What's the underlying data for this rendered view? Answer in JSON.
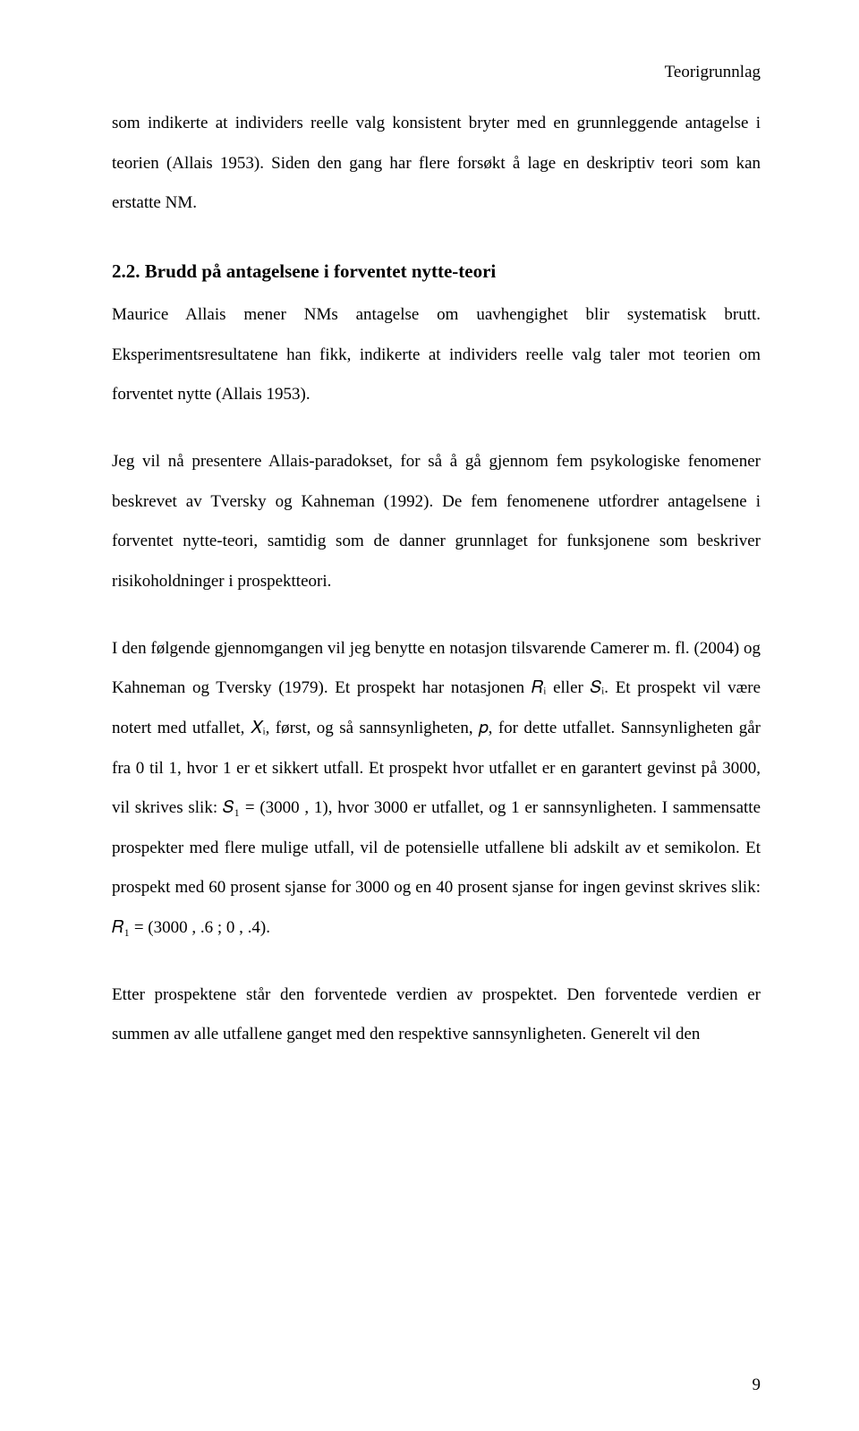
{
  "header": {
    "running_title": "Teorigrunnlag"
  },
  "body": {
    "p1": "som indikerte at individers reelle valg konsistent bryter med en grunnleggende antagelse i teorien (Allais 1953). Siden den gang har flere forsøkt å lage en deskriptiv teori som kan erstatte NM.",
    "h1": "2.2. Brudd på antagelsene i forventet nytte-teori",
    "p2": "Maurice Allais mener NMs antagelse om uavhengighet blir systematisk brutt. Eksperimentsresultatene han fikk, indikerte at individers reelle valg taler mot teorien om forventet nytte (Allais 1953).",
    "p3": "Jeg vil nå presentere Allais-paradokset, for så å gå gjennom fem psykologiske fenomener beskrevet av Tversky og Kahneman (1992). De fem fenomenene utfordrer antagelsene i forventet nytte-teori, samtidig som de danner grunnlaget for funksjonene som beskriver risikoholdninger i prospektteori.",
    "p4": "I den følgende gjennomgangen vil jeg benytte en notasjon tilsvarende Camerer m. fl. (2004) og Kahneman og Tversky (1979). Et prospekt har notasjonen 𝑅ᵢ eller 𝑆ᵢ. Et prospekt vil være notert med utfallet, 𝑋ᵢ, først, og så sannsynligheten, 𝑝, for dette utfallet. Sannsynligheten går fra 0 til 1, hvor 1 er et sikkert utfall. Et prospekt hvor utfallet er en garantert gevinst på 3000, vil skrives slik: 𝑆₁ = (3000 , 1), hvor 3000 er utfallet, og 1 er sannsynligheten. I sammensatte prospekter med flere mulige utfall, vil de potensielle utfallene bli adskilt av et semikolon. Et prospekt med 60 prosent sjanse for 3000 og en 40 prosent sjanse for ingen gevinst skrives slik: 𝑅₁ = (3000 , .6 ; 0 , .4).",
    "p5": "Etter prospektene står den forventede verdien av prospektet. Den forventede verdien er summen av alle utfallene ganget med den respektive sannsynligheten. Generelt vil den"
  },
  "footer": {
    "page_number": "9"
  }
}
